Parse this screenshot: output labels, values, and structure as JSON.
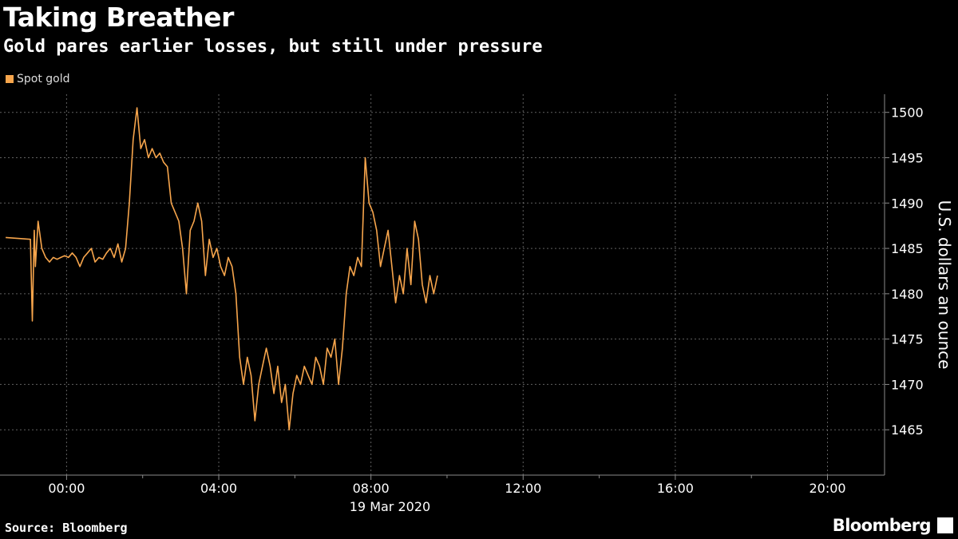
{
  "header": {
    "title": "Taking Breather",
    "subtitle": "Gold pares earlier losses, but still under pressure"
  },
  "footer": {
    "source": "Source: Bloomberg",
    "brand": "Bloomberg"
  },
  "colors": {
    "background": "#000000",
    "line": "#f7a54c",
    "grid": "#8a8a8a",
    "text": "#ffffff"
  },
  "chart_data": {
    "type": "line",
    "title": "Taking Breather",
    "subtitle": "Gold pares earlier losses, but still under pressure",
    "ylabel": "U.S. dollars an ounce",
    "date_label": "19 Mar 2020",
    "ylim": [
      1460,
      1502
    ],
    "xlim": [
      -1.75,
      21.5
    ],
    "yticks": [
      1465,
      1470,
      1475,
      1480,
      1485,
      1490,
      1495,
      1500
    ],
    "xticks": [
      {
        "value": 0,
        "label": "00:00"
      },
      {
        "value": 4,
        "label": "04:00"
      },
      {
        "value": 8,
        "label": "08:00"
      },
      {
        "value": 12,
        "label": "12:00"
      },
      {
        "value": 16,
        "label": "16:00"
      },
      {
        "value": 20,
        "label": "20:00"
      }
    ],
    "grid": true,
    "legend_position": "top-left",
    "series": [
      {
        "name": "Spot gold",
        "x": [
          -1.75,
          -1.6,
          -0.95,
          -0.9,
          -0.85,
          -0.82,
          -0.75,
          -0.65,
          -0.55,
          -0.45,
          -0.35,
          -0.25,
          -0.15,
          -0.05,
          0.05,
          0.15,
          0.25,
          0.35,
          0.45,
          0.55,
          0.65,
          0.75,
          0.85,
          0.95,
          1.05,
          1.15,
          1.25,
          1.35,
          1.45,
          1.55,
          1.65,
          1.75,
          1.85,
          1.95,
          2.05,
          2.15,
          2.25,
          2.35,
          2.45,
          2.55,
          2.65,
          2.75,
          2.85,
          2.95,
          3.05,
          3.15,
          3.25,
          3.35,
          3.45,
          3.55,
          3.65,
          3.75,
          3.85,
          3.95,
          4.05,
          4.15,
          4.25,
          4.35,
          4.45,
          4.55,
          4.65,
          4.75,
          4.85,
          4.95,
          5.05,
          5.15,
          5.25,
          5.35,
          5.45,
          5.55,
          5.65,
          5.75,
          5.85,
          5.95,
          6.05,
          6.15,
          6.25,
          6.35,
          6.45,
          6.55,
          6.65,
          6.75,
          6.85,
          6.95,
          7.05,
          7.15,
          7.25,
          7.35,
          7.45,
          7.55,
          7.65,
          7.75,
          7.85,
          7.95,
          8.05,
          8.15,
          8.25,
          8.35,
          8.45,
          8.55,
          8.65,
          8.75,
          8.85,
          8.95,
          9.05,
          9.15,
          9.25,
          9.35,
          9.45,
          9.55,
          9.65,
          9.75
        ],
        "y": [
          1486.0,
          1486.2,
          1486.0,
          1477.0,
          1487.0,
          1483.0,
          1488.0,
          1485.0,
          1484.0,
          1483.5,
          1484.0,
          1483.8,
          1484.0,
          1484.2,
          1484.0,
          1484.5,
          1484.0,
          1483.0,
          1484.0,
          1484.5,
          1485.0,
          1483.5,
          1484.0,
          1483.8,
          1484.5,
          1485.0,
          1484.0,
          1485.5,
          1483.5,
          1485.0,
          1490.0,
          1497.0,
          1500.5,
          1496.0,
          1497.0,
          1495.0,
          1496.0,
          1495.0,
          1495.5,
          1494.5,
          1494.0,
          1490.0,
          1489.0,
          1488.0,
          1485.0,
          1480.0,
          1487.0,
          1488.0,
          1490.0,
          1488.0,
          1482.0,
          1486.0,
          1484.0,
          1485.0,
          1483.0,
          1482.0,
          1484.0,
          1483.0,
          1480.0,
          1473.0,
          1470.0,
          1473.0,
          1471.0,
          1466.0,
          1470.0,
          1472.0,
          1474.0,
          1472.0,
          1469.0,
          1472.0,
          1468.0,
          1470.0,
          1465.0,
          1469.0,
          1471.0,
          1470.0,
          1472.0,
          1471.0,
          1470.0,
          1473.0,
          1472.0,
          1470.0,
          1474.0,
          1473.0,
          1475.0,
          1470.0,
          1474.0,
          1480.0,
          1483.0,
          1482.0,
          1484.0,
          1483.0,
          1495.0,
          1490.0,
          1489.0,
          1487.0,
          1483.0,
          1485.0,
          1487.0,
          1483.0,
          1479.0,
          1482.0,
          1480.0,
          1485.0,
          1481.0,
          1488.0,
          1486.0,
          1481.0,
          1479.0,
          1482.0,
          1480.0,
          1482.0
        ]
      }
    ]
  }
}
